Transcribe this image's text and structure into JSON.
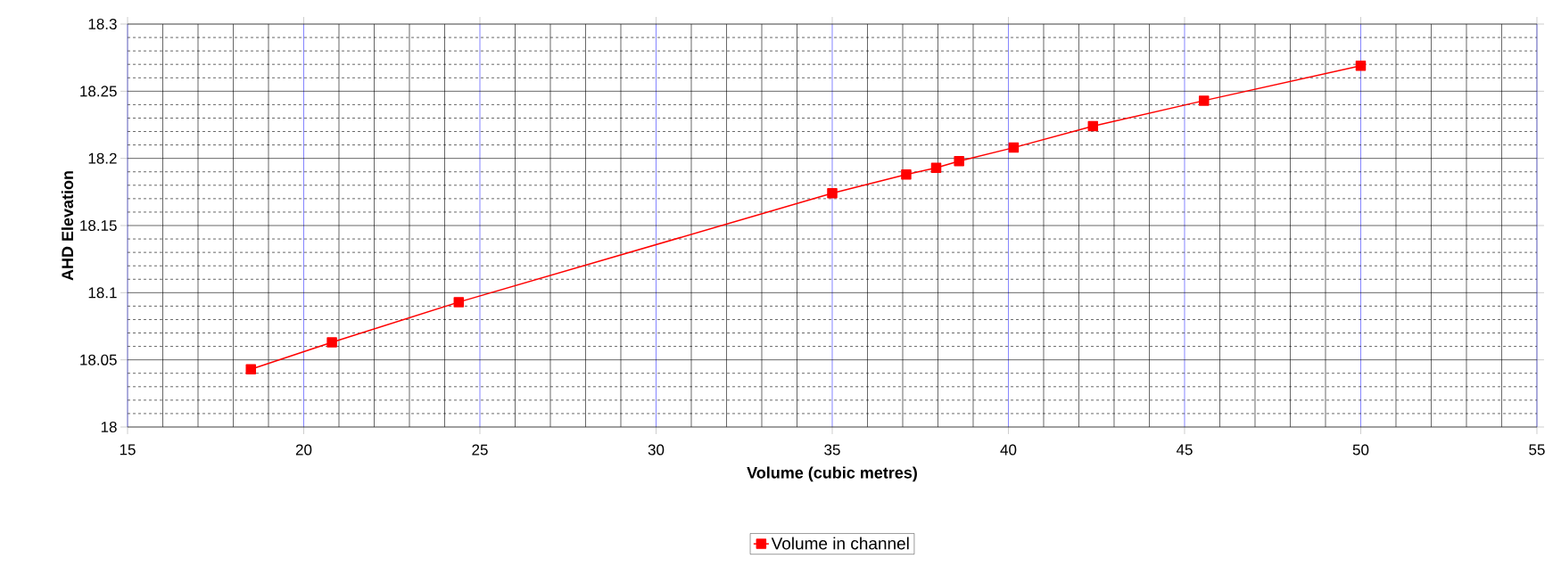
{
  "chart_data": {
    "type": "line",
    "xlabel": "Volume (cubic metres)",
    "ylabel": "AHD Elevation",
    "x": [
      18.5,
      20.8,
      24.4,
      35.0,
      37.1,
      37.95,
      38.6,
      40.15,
      42.4,
      45.55,
      50.0
    ],
    "series": [
      {
        "name": "Volume in channel",
        "color": "#ff0000",
        "values": [
          18.043,
          18.063,
          18.093,
          18.174,
          18.188,
          18.193,
          18.198,
          18.208,
          18.224,
          18.243,
          18.269
        ]
      }
    ],
    "xlim": [
      15,
      55
    ],
    "xticks": [
      15,
      20,
      25,
      30,
      35,
      40,
      45,
      50,
      55
    ],
    "ylim": [
      18,
      18.3
    ],
    "yticks": [
      18,
      18.05,
      18.1,
      18.15,
      18.2,
      18.25,
      18.3
    ],
    "grid": true,
    "legend": "bottom",
    "marker": "square",
    "line_style": "solid"
  }
}
